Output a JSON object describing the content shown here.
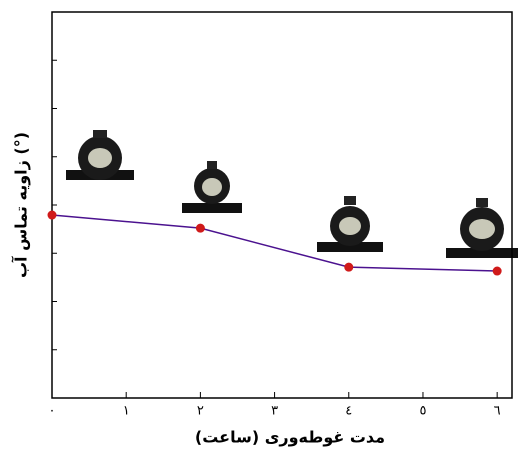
{
  "chart_data": {
    "type": "line",
    "x_label": "مدت غوطه‌وری (ساعت)",
    "y_label": "زاویه تماس آب (°)",
    "x": [
      0,
      2,
      4,
      6
    ],
    "series": [
      {
        "color": "#4b128f",
        "marker_color": "#d01a1a",
        "values": [
          47.4,
          44.0,
          33.9,
          32.9
        ]
      }
    ],
    "xlim": [
      0,
      6.2
    ],
    "xticks": [
      {
        "value": 0,
        "label": "٠"
      },
      {
        "value": 1,
        "label": "١"
      },
      {
        "value": 2,
        "label": "٢"
      },
      {
        "value": 3,
        "label": "٣"
      },
      {
        "value": 4,
        "label": "٤"
      },
      {
        "value": 5,
        "label": "٥"
      },
      {
        "value": 6,
        "label": "٦"
      }
    ],
    "ylim": [
      0,
      100
    ],
    "yticks": [
      0,
      12.5,
      25,
      37.5,
      50,
      62.5,
      75,
      87.5,
      100
    ]
  }
}
